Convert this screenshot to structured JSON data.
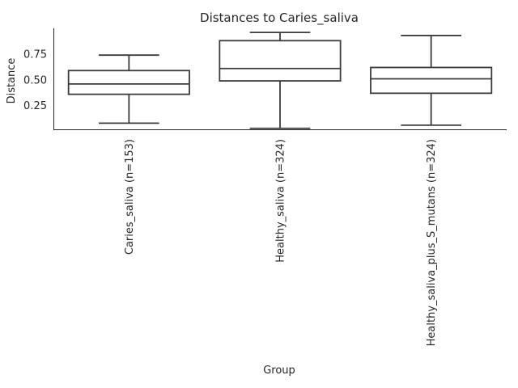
{
  "chart_data": {
    "type": "box",
    "title": "Distances to Caries_saliva",
    "xlabel": "Group",
    "ylabel": "Distance",
    "yticks": [
      0.25,
      0.5,
      0.75
    ],
    "ytick_labels": [
      "0.25",
      "0.50",
      "0.75"
    ],
    "ylim": [
      0.02,
      1.0
    ],
    "categories": [
      "Caries_saliva (n=153)",
      "Healthy_saliva (n=324)",
      "Healthy_saliva_plus_S_mutans (n=324)"
    ],
    "boxes": [
      {
        "whislo": 0.08,
        "q1": 0.36,
        "med": 0.46,
        "q3": 0.59,
        "whishi": 0.74
      },
      {
        "whislo": 0.03,
        "q1": 0.49,
        "med": 0.61,
        "q3": 0.88,
        "whishi": 0.96
      },
      {
        "whislo": 0.06,
        "q1": 0.37,
        "med": 0.51,
        "q3": 0.62,
        "whishi": 0.93
      }
    ],
    "grid": false
  }
}
